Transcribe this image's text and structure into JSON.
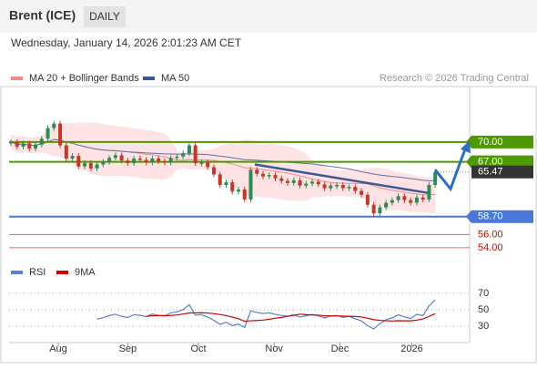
{
  "chart_data": {
    "type": "candlestick",
    "title": "Brent (ICE)",
    "timeframe": "DAILY",
    "date": "Wednesday, January 14, 2026 2:01:23 AM CET",
    "legend": [
      {
        "name": "MA 20 + Bollinger Bands",
        "color": "#f08c8c"
      },
      {
        "name": "MA 50",
        "color": "#3b5998"
      }
    ],
    "credit": "Research © 2026 Trading Central",
    "closes": [
      70.0,
      69.3,
      69.8,
      69.0,
      69.6,
      70.5,
      72.1,
      72.8,
      69.5,
      67.5,
      67.9,
      66.3,
      66.8,
      66.0,
      66.6,
      67.0,
      67.6,
      68.0,
      67.2,
      66.8,
      67.5,
      67.3,
      66.9,
      67.5,
      67.1,
      66.9,
      67.6,
      67.8,
      68.3,
      69.5,
      66.8,
      66.9,
      66.2,
      65.1,
      63.5,
      63.9,
      62.5,
      62.8,
      61.3,
      65.8,
      65.2,
      64.8,
      65.0,
      64.5,
      64.1,
      63.8,
      64.2,
      63.4,
      63.7,
      64.0,
      63.6,
      63.0,
      63.4,
      63.5,
      63.0,
      63.2,
      62.6,
      62.0,
      60.5,
      59.2,
      60.1,
      60.8,
      61.2,
      61.8,
      61.2,
      60.8,
      61.6,
      61.3,
      63.5,
      65.47
    ],
    "ylim": [
      52.6,
      78.4
    ],
    "xlim": [
      0,
      74.6
    ],
    "xticks": [
      {
        "value": 7.7,
        "label": "Aug"
      },
      {
        "value": 19,
        "label": "Sep"
      },
      {
        "value": 30.5,
        "label": "Oct"
      },
      {
        "value": 42.8,
        "label": "Nov"
      },
      {
        "value": 53.5,
        "label": "Dec"
      },
      {
        "value": 65.2,
        "label": "2026"
      }
    ],
    "levels": [
      {
        "value": 70,
        "label": "70.00",
        "color": "#4c9a00",
        "style": "box"
      },
      {
        "value": 67,
        "label": "67.00",
        "color": "#4c9a00",
        "style": "box"
      },
      {
        "value": 65.47,
        "label": "65.47",
        "color": "#333333",
        "style": "last"
      },
      {
        "value": 58.7,
        "label": "58.70",
        "color": "#4a78d8",
        "style": "box"
      },
      {
        "value": 56,
        "label": "56.00",
        "color": "#cc0000",
        "style": "text"
      },
      {
        "value": 54,
        "label": "54.00",
        "color": "#cc0000",
        "style": "text"
      }
    ],
    "rsi": {
      "legend": [
        {
          "name": "RSI",
          "color": "#5b7fd0"
        },
        {
          "name": "9MA",
          "color": "#cc0000"
        }
      ],
      "ylim": [
        16.7,
        88.9
      ],
      "yticks": [
        70,
        50,
        30
      ]
    }
  }
}
